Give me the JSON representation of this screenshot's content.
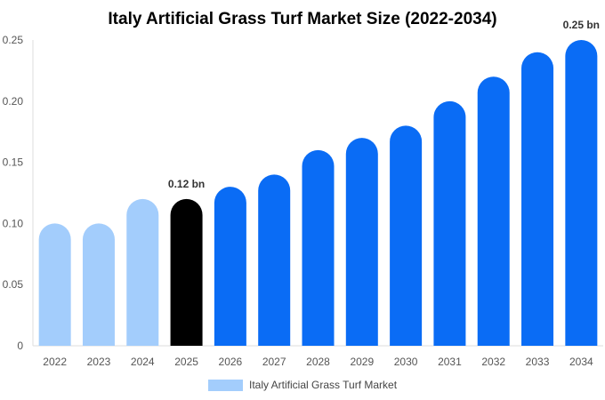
{
  "chart_data": {
    "type": "bar",
    "title": "Italy Artificial Grass Turf Market Size (2022-2034)",
    "xlabel": "",
    "ylabel": "",
    "categories": [
      "2022",
      "2023",
      "2024",
      "2025",
      "2026",
      "2027",
      "2028",
      "2029",
      "2030",
      "2031",
      "2032",
      "2033",
      "2034"
    ],
    "series": [
      {
        "name": "Italy Artificial Grass Turf Market",
        "values": [
          0.1,
          0.1,
          0.12,
          0.12,
          0.13,
          0.14,
          0.16,
          0.17,
          0.18,
          0.2,
          0.22,
          0.24,
          0.25
        ]
      }
    ],
    "ylim": [
      0,
      0.25
    ],
    "yticks": [
      "0",
      "0.05",
      "0.10",
      "0.15",
      "0.20",
      "0.25"
    ],
    "data_labels": [
      {
        "category": "2025",
        "text": "0.12 bn"
      },
      {
        "category": "2034",
        "text": "0.25 bn"
      }
    ],
    "colors": {
      "historical": "#a3cdfc",
      "current": "#000000",
      "forecast": "#0a6cf5"
    },
    "bar_color_groups": [
      "historical",
      "historical",
      "historical",
      "current",
      "forecast",
      "forecast",
      "forecast",
      "forecast",
      "forecast",
      "forecast",
      "forecast",
      "forecast",
      "forecast"
    ],
    "legend": {
      "position": "bottom",
      "label": "Italy Artificial Grass Turf Market",
      "color": "#a3cdfc"
    },
    "grid": false
  }
}
